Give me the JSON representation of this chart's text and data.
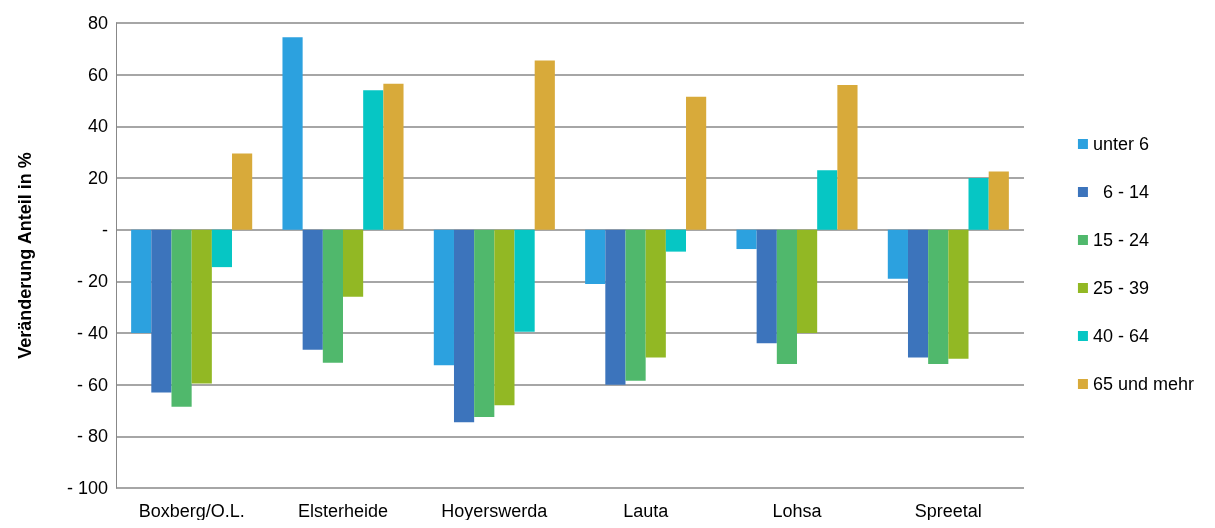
{
  "chart_data": {
    "type": "bar",
    "ylabel": "Veränderung Anteil in %",
    "categories": [
      "Boxberg/O.L.",
      "Elsterheide",
      "Hoyerswerda",
      "Lauta",
      "Lohsa",
      "Spreetal"
    ],
    "series": [
      {
        "name": "unter 6",
        "color": "#2ca1df",
        "values": [
          -40,
          74.5,
          -52.5,
          -21,
          -7.5,
          -19
        ]
      },
      {
        "name": "  6 - 14",
        "color": "#3c74bc",
        "values": [
          -63,
          -46.5,
          -74.5,
          -60,
          -44,
          -49.5
        ]
      },
      {
        "name": "15 - 24",
        "color": "#50b86c",
        "values": [
          -68.5,
          -51.5,
          -72.5,
          -58.5,
          -52,
          -52
        ]
      },
      {
        "name": "25 - 39",
        "color": "#92b824",
        "values": [
          -59.5,
          -26,
          -68,
          -49.5,
          -40,
          -50
        ]
      },
      {
        "name": "40 - 64",
        "color": "#06c6c4",
        "values": [
          -14.5,
          54,
          -39.5,
          -8.5,
          23,
          20
        ]
      },
      {
        "name": "65 und mehr",
        "color": "#d8aa3a",
        "values": [
          29.5,
          56.5,
          65.5,
          51.5,
          56,
          22.5
        ]
      }
    ],
    "ylim": [
      -100,
      80
    ],
    "yticks": [
      {
        "value": -100,
        "label": "- 100"
      },
      {
        "value": -80,
        "label": "- 80"
      },
      {
        "value": -60,
        "label": "- 60"
      },
      {
        "value": -40,
        "label": "- 40"
      },
      {
        "value": -20,
        "label": "- 20"
      },
      {
        "value": 0,
        "label": "-"
      },
      20,
      40,
      60,
      80
    ],
    "grid": "y",
    "legend": "right"
  }
}
